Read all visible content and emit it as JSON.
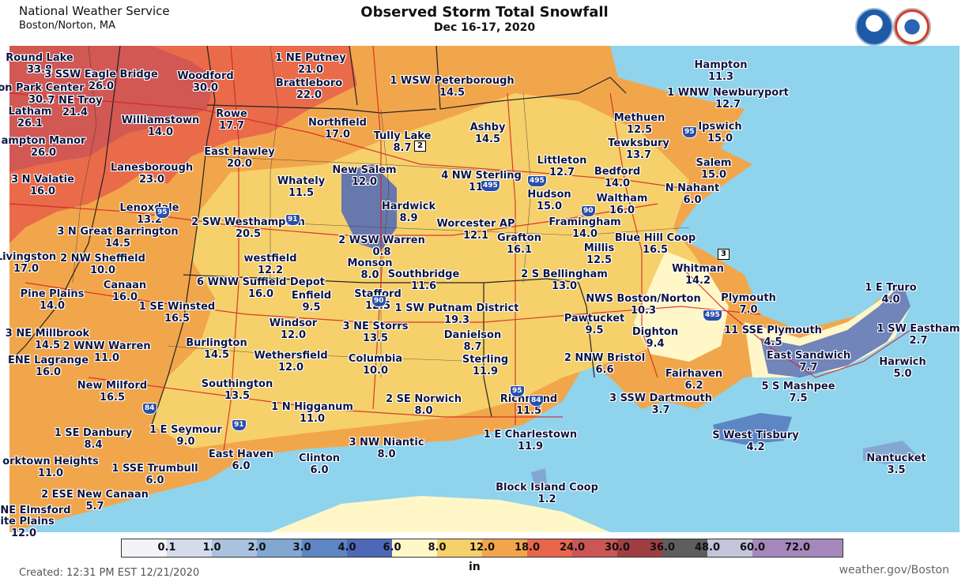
{
  "header": {
    "org": "National Weather Service",
    "office": "Boston/Norton, MA",
    "title": "Observed Storm Total Snowfall",
    "subtitle": "Dec 16-17, 2020"
  },
  "legend": {
    "unit": "in",
    "bins": [
      {
        "color": "#f4f4f8",
        "label": "0.1"
      },
      {
        "color": "#d4dcec",
        "label": "1.0"
      },
      {
        "color": "#a9c3df",
        "label": "2.0"
      },
      {
        "color": "#82a8d2",
        "label": "3.0"
      },
      {
        "color": "#5d86c4",
        "label": "4.0"
      },
      {
        "color": "#4e68b8",
        "label": "6.0"
      },
      {
        "color": "#fff7c8",
        "label": "8.0"
      },
      {
        "color": "#f6d06a",
        "label": "12.0"
      },
      {
        "color": "#f2a64b",
        "label": "18.0"
      },
      {
        "color": "#e8664a",
        "label": "24.0"
      },
      {
        "color": "#cc5555",
        "label": "30.0"
      },
      {
        "color": "#9f3e42",
        "label": "36.0"
      },
      {
        "color": "#5e5e5e",
        "label": "48.0"
      },
      {
        "color": "#c4c4da",
        "label": "60.0"
      },
      {
        "color": "#a488bc",
        "label": "72.0"
      },
      {
        "color": "#a488bc",
        "label": ""
      }
    ]
  },
  "footer": {
    "created": "Created: 12:31 PM EST 12/21/2020",
    "site": "weather.gov/Boston"
  },
  "places": [
    {
      "n": "Round Lake",
      "v": "33.8"
    },
    {
      "n": "3 SSW Eagle Bridge",
      "v": "26.0"
    },
    {
      "n": "on Park Center",
      "v": "30.1"
    },
    {
      "n": "7 NE Troy",
      "v": "21.4"
    },
    {
      "n": "Latham",
      "v": "26.1"
    },
    {
      "n": "Woodford",
      "v": "30.0"
    },
    {
      "n": "1 NE Putney",
      "v": "21.0"
    },
    {
      "n": "Brattleboro",
      "v": "22.0"
    },
    {
      "n": "1 WSW Peterborough",
      "v": "14.5"
    },
    {
      "n": "Hampton",
      "v": "11.3"
    },
    {
      "n": "1 WNW Newburyport",
      "v": "12.7"
    },
    {
      "n": "Williamstown",
      "v": "14.0"
    },
    {
      "n": "Rowe",
      "v": "17.7"
    },
    {
      "n": "Northfield",
      "v": "17.0"
    },
    {
      "n": "Ashby",
      "v": "14.5"
    },
    {
      "n": "Methuen",
      "v": "12.5"
    },
    {
      "n": "Ipswich",
      "v": "15.0"
    },
    {
      "n": "ampton Manor",
      "v": "26.0"
    },
    {
      "n": "Tully Lake",
      "v": "8.7"
    },
    {
      "n": "Tewksbury",
      "v": "13.7"
    },
    {
      "n": "East Hawley",
      "v": "20.0"
    },
    {
      "n": "Littleton",
      "v": "12.7"
    },
    {
      "n": "Salem",
      "v": "15.0"
    },
    {
      "n": "Lanesborough",
      "v": "23.0"
    },
    {
      "n": "New Salem",
      "v": "12.0"
    },
    {
      "n": "Bedford",
      "v": "14.0"
    },
    {
      "n": "3 N Valatie",
      "v": "16.0"
    },
    {
      "n": "Whately",
      "v": "11.5"
    },
    {
      "n": "4 NW Sterling",
      "v": "11.9"
    },
    {
      "n": "N Nahant",
      "v": "6.0"
    },
    {
      "n": "Hudson",
      "v": "15.0"
    },
    {
      "n": "Waltham",
      "v": "16.0"
    },
    {
      "n": "Lenoxdale",
      "v": "13.2"
    },
    {
      "n": "Hardwick",
      "v": "8.9"
    },
    {
      "n": "2 SW Westhampton",
      "v": "20.5"
    },
    {
      "n": "Worcester AP",
      "v": "12.1"
    },
    {
      "n": "Framingham",
      "v": "14.0"
    },
    {
      "n": "3 N Great Barrington",
      "v": "14.5"
    },
    {
      "n": "2 WSW Warren",
      "v": "0.8"
    },
    {
      "n": "Grafton",
      "v": "16.1"
    },
    {
      "n": "Blue Hill Coop",
      "v": "16.5"
    },
    {
      "n": "Livingston",
      "v": "17.0"
    },
    {
      "n": "2 NW Sheffield",
      "v": "10.0"
    },
    {
      "n": "westfield",
      "v": "12.2"
    },
    {
      "n": "Monson",
      "v": "8.0"
    },
    {
      "n": "Millis",
      "v": "12.5"
    },
    {
      "n": "Whitman",
      "v": "14.2"
    },
    {
      "n": "Southbridge",
      "v": "11.6"
    },
    {
      "n": "2 S Bellingham",
      "v": "13.0"
    },
    {
      "n": "1 E Truro",
      "v": "4.0"
    },
    {
      "n": "Canaan",
      "v": "16.0"
    },
    {
      "n": "6 WNW Suffield Depot",
      "v": "16.0"
    },
    {
      "n": "Pine Plains",
      "v": "14.0"
    },
    {
      "n": "Enfield",
      "v": "9.5"
    },
    {
      "n": "Stafford",
      "v": "12.5"
    },
    {
      "n": "NWS Boston/Norton",
      "v": "10.3"
    },
    {
      "n": "Plymouth",
      "v": "7.0"
    },
    {
      "n": "1 SE Winsted",
      "v": "16.5"
    },
    {
      "n": "1 SW Putnam District",
      "v": "19.3"
    },
    {
      "n": "Pawtucket",
      "v": "9.5"
    },
    {
      "n": "Windsor",
      "v": "12.0"
    },
    {
      "n": "3 NE Storrs",
      "v": "13.5"
    },
    {
      "n": "Dighton",
      "v": "9.4"
    },
    {
      "n": "11 SSE Plymouth",
      "v": "4.5"
    },
    {
      "n": "1 SW Eastham",
      "v": "2.7"
    },
    {
      "n": "3 NE Millbrook",
      "v": "14.5"
    },
    {
      "n": "2 WNW Warren",
      "v": "11.0"
    },
    {
      "n": "Burlington",
      "v": "14.5"
    },
    {
      "n": "Danielson",
      "v": "8.7"
    },
    {
      "n": "ENE Lagrange",
      "v": "16.0"
    },
    {
      "n": "Wethersfield",
      "v": "12.0"
    },
    {
      "n": "Columbia",
      "v": "10.0"
    },
    {
      "n": "Sterling",
      "v": "11.9"
    },
    {
      "n": "2 NNW Bristol",
      "v": "6.6"
    },
    {
      "n": "East Sandwich",
      "v": "7.7"
    },
    {
      "n": "Harwich",
      "v": "5.0"
    },
    {
      "n": "Fairhaven",
      "v": "6.2"
    },
    {
      "n": "New Milford",
      "v": "16.5"
    },
    {
      "n": "Southington",
      "v": "13.5"
    },
    {
      "n": "5 S Mashpee",
      "v": "7.5"
    },
    {
      "n": "3 SSW Dartmouth",
      "v": "3.7"
    },
    {
      "n": "2 SE Norwich",
      "v": "8.0"
    },
    {
      "n": "Richmond",
      "v": "11.5"
    },
    {
      "n": "1 N Higganum",
      "v": "11.0"
    },
    {
      "n": "1 SE Danbury",
      "v": "8.4"
    },
    {
      "n": "1 E Seymour",
      "v": "9.0"
    },
    {
      "n": "1 E Charlestown",
      "v": "11.9"
    },
    {
      "n": "S West Tisbury",
      "v": "4.2"
    },
    {
      "n": "3 NW Niantic",
      "v": "8.0"
    },
    {
      "n": "East Haven",
      "v": "6.0"
    },
    {
      "n": "Clinton",
      "v": "6.0"
    },
    {
      "n": "orktown Heights",
      "v": "11.0"
    },
    {
      "n": "Nantucket",
      "v": "3.5"
    },
    {
      "n": "1 SSE Trumbull",
      "v": "6.0"
    },
    {
      "n": "Block Island Coop",
      "v": "1.2"
    },
    {
      "n": "2 ESE New Canaan",
      "v": "5.7"
    },
    {
      "n": "NE Elmsford",
      "v": ""
    },
    {
      "n": "hite Plains",
      "v": "12.0"
    }
  ],
  "shields": [
    "84",
    "91",
    "95",
    "495",
    "90",
    "495",
    "95",
    "495",
    "91",
    "95",
    "90",
    "84"
  ],
  "routes": [
    "2",
    "3"
  ]
}
